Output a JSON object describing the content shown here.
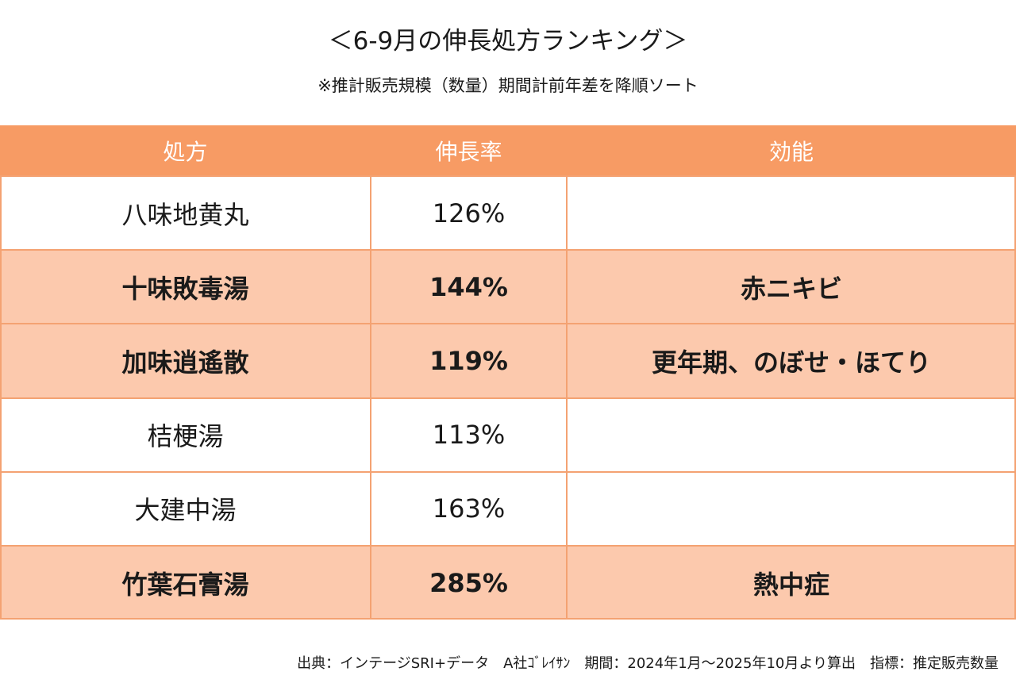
{
  "header": {
    "title": "＜6-9月の伸長処方ランキング＞",
    "subtitle": "※推計販売規模（数量）期間計前年差を降順ソート"
  },
  "table": {
    "columns": [
      "処方",
      "伸長率",
      "効能"
    ],
    "rows": [
      [
        "八味地黄丸",
        "126%"
      ],
      [
        "十味敗毒湯",
        "144%",
        "赤ニキビ"
      ],
      [
        "加味逍遙散",
        "119%",
        "更年期、のぼせ・ほてり"
      ],
      [
        "桔梗湯",
        "113%"
      ],
      [
        "大建中湯",
        "163%"
      ],
      [
        "竹葉石膏湯",
        "285%",
        "熱中症"
      ]
    ]
  },
  "footer": "出典：インテージSRI+データ　A社ｺﾞﾚｲｻﾝ　期間：2024年1月～2025年10月より算出　指標：推定販売数量"
}
